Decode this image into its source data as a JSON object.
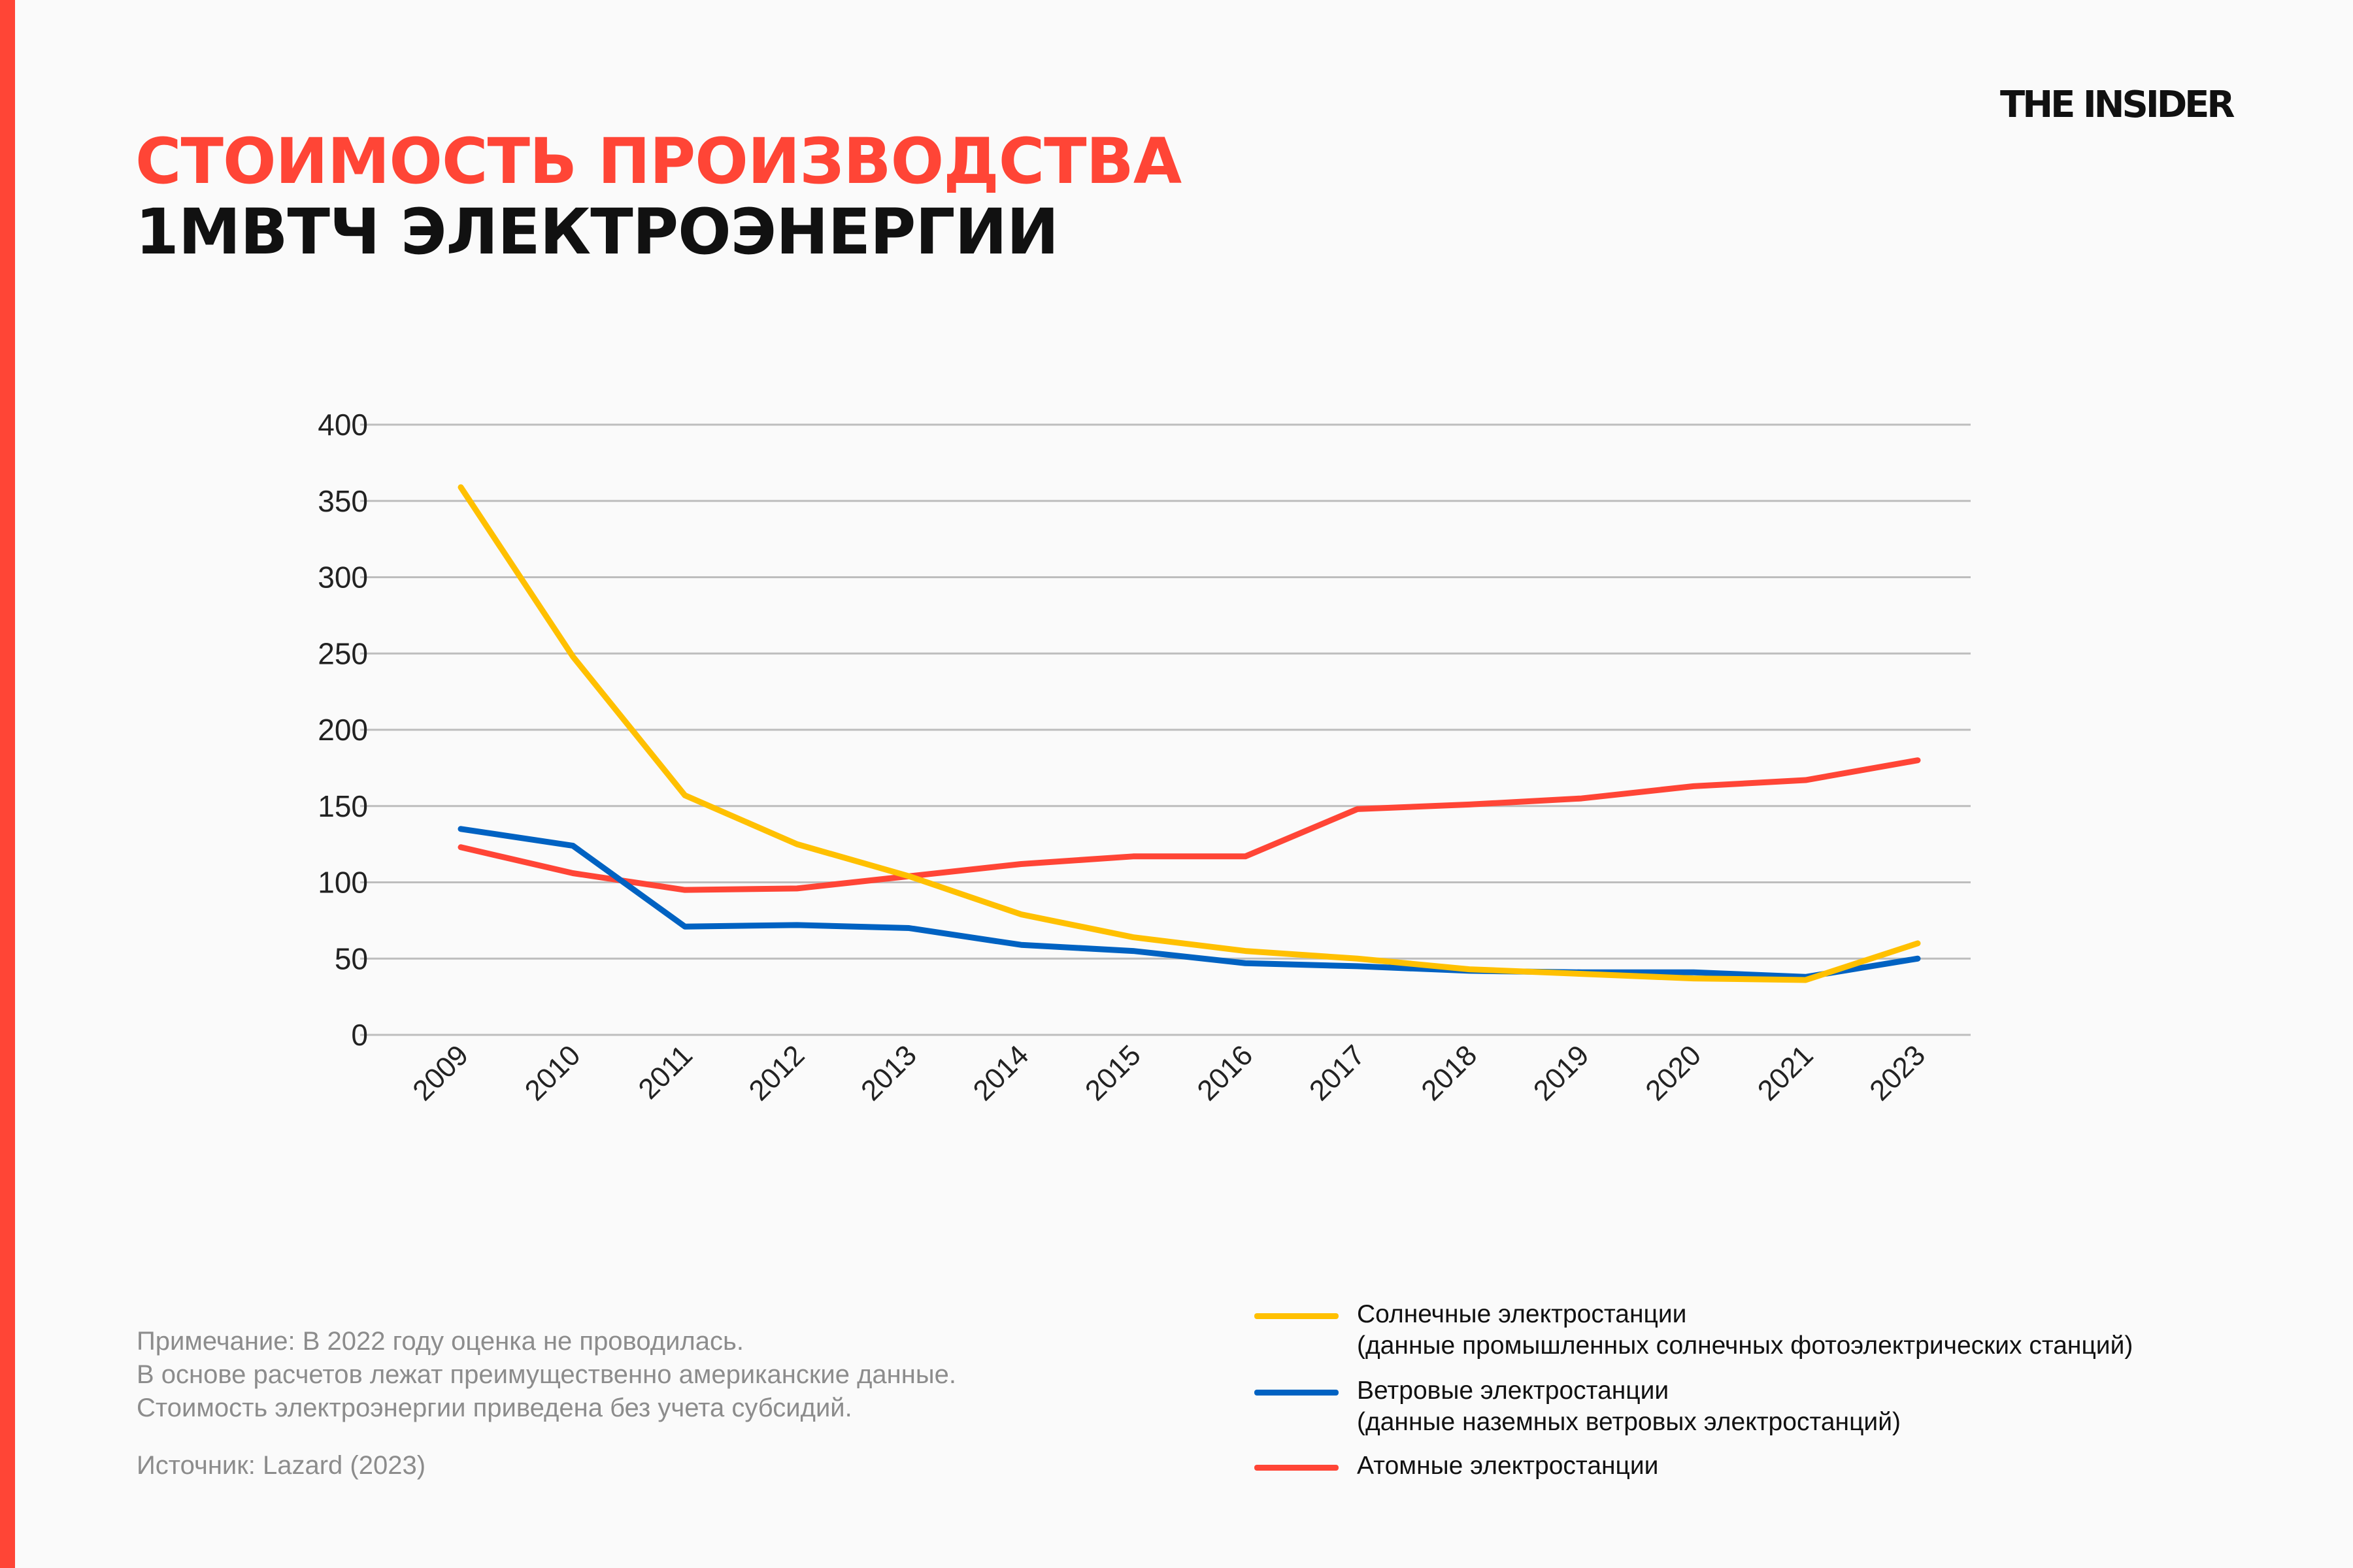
{
  "title": {
    "line1": "СТОИМОСТЬ ПРОИЗВОДСТВА",
    "line2": "1МВТЧ ЭЛЕКТРОЭНЕРГИИ"
  },
  "logo": "THE INSIDER",
  "notes": {
    "lines": [
      "Примечание: В 2022 году оценка не проводилась.",
      "В основе расчетов лежат преимущественно американские данные.",
      "Стоимость электроэнергии приведена без учета субсидий."
    ],
    "source": "Источник: Lazard (2023)"
  },
  "legend": [
    {
      "line1": "Солнечные электростанции",
      "line2": "(данные промышленных солнечных фотоэлектрических станций)"
    },
    {
      "line1": "Ветровые электростанции",
      "line2": "(данные наземных ветровых электростанций)"
    },
    {
      "line1": "Атомные электростанции",
      "line2": ""
    }
  ],
  "colors": {
    "accent": "#ff4536",
    "solar": "#ffc000",
    "wind": "#0062c2",
    "nuclear": "#ff4536"
  },
  "chart_data": {
    "type": "line",
    "categories": [
      "2009",
      "2010",
      "2011",
      "2012",
      "2013",
      "2014",
      "2015",
      "2016",
      "2017",
      "2018",
      "2019",
      "2020",
      "2021",
      "2023"
    ],
    "ylim": [
      0,
      400
    ],
    "yticks": [
      "0",
      "50",
      "100",
      "150",
      "200",
      "250",
      "300",
      "350",
      "400"
    ],
    "grid": true,
    "legend_placement": "bottom-right",
    "series": [
      {
        "name": "Солнечные электростанции",
        "color": "#ffc000",
        "values": [
          359,
          248,
          157,
          125,
          104,
          79,
          64,
          55,
          50,
          43,
          40,
          37,
          36,
          60
        ]
      },
      {
        "name": "Ветровые электростанции",
        "color": "#0062c2",
        "values": [
          135,
          124,
          71,
          72,
          70,
          59,
          55,
          47,
          45,
          42,
          41,
          41,
          38,
          50
        ]
      },
      {
        "name": "Атомные электростанции",
        "color": "#ff4536",
        "values": [
          123,
          106,
          95,
          96,
          104,
          112,
          117,
          117,
          148,
          151,
          155,
          163,
          167,
          180
        ]
      }
    ]
  }
}
